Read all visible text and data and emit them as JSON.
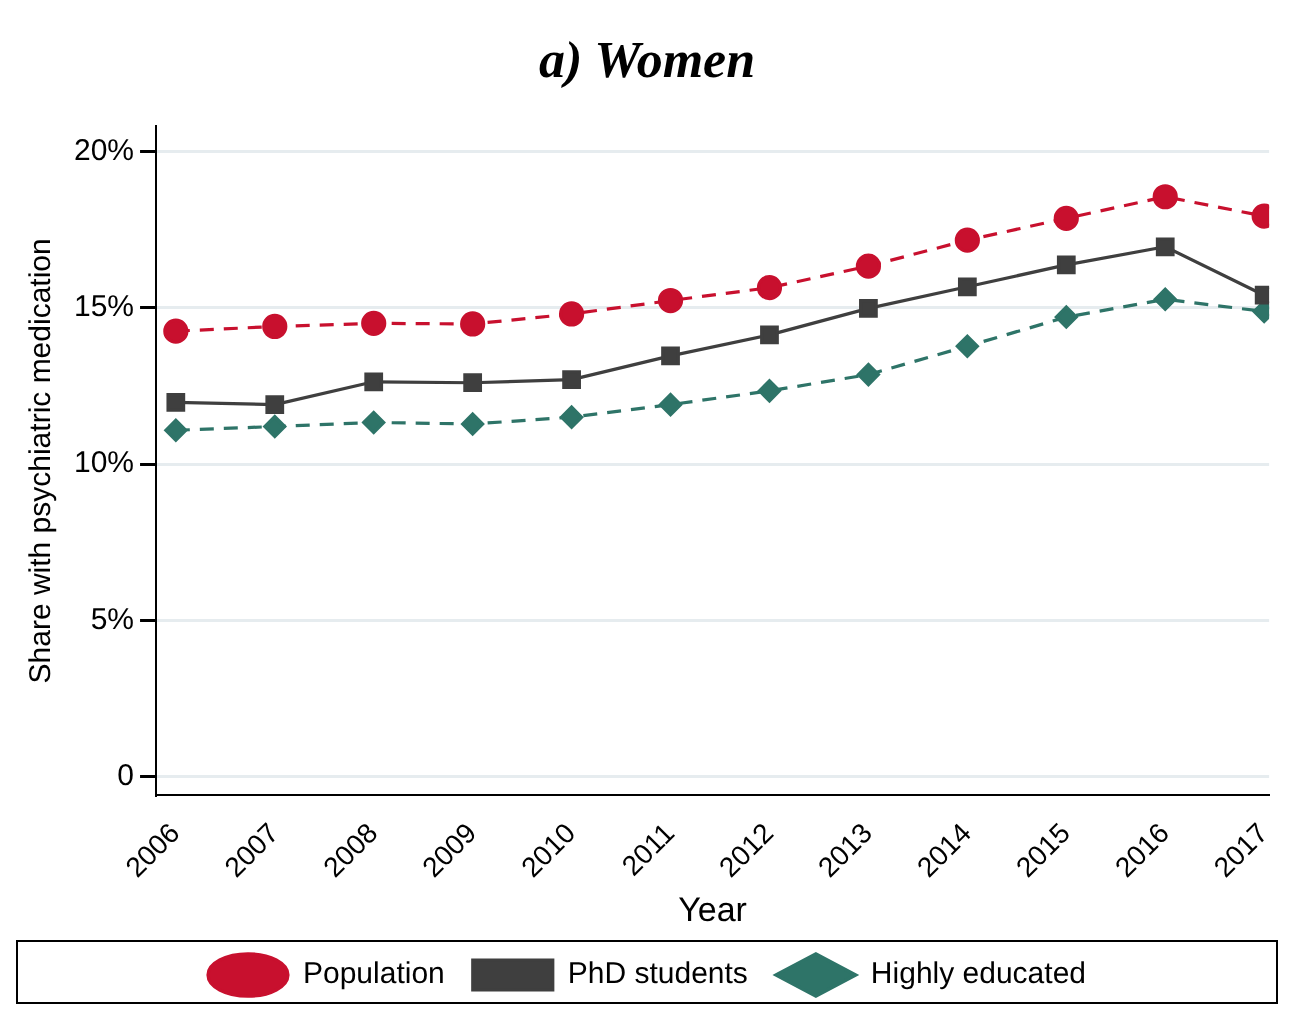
{
  "chart_data": {
    "type": "line",
    "title": "a) Women",
    "xlabel": "Year",
    "ylabel": "Share with psychiatric medication",
    "x": [
      2006,
      2007,
      2008,
      2009,
      2010,
      2011,
      2012,
      2013,
      2014,
      2015,
      2016,
      2017
    ],
    "xlim": [
      2005.8,
      2017.05
    ],
    "xticks": [
      2006,
      2007,
      2008,
      2009,
      2010,
      2011,
      2012,
      2013,
      2014,
      2015,
      2016,
      2017
    ],
    "ylim": [
      -0.6,
      20.8
    ],
    "yticks": [
      0,
      {
        "value": 5,
        "label": "5%"
      },
      {
        "value": 10,
        "label": "10%"
      },
      {
        "value": 15,
        "label": "15%"
      },
      {
        "value": 20,
        "label": "20%"
      }
    ],
    "grid": "y",
    "legend": "bottom",
    "series": [
      {
        "name": "Population",
        "color": "#c8102e",
        "marker": "circle",
        "line_style": "dashed",
        "values": [
          14.25,
          14.4,
          14.5,
          14.48,
          14.8,
          15.23,
          15.64,
          16.33,
          17.16,
          17.86,
          18.55,
          17.93
        ]
      },
      {
        "name": "PhD students",
        "color": "#3f3f3f",
        "marker": "square",
        "line_style": "solid",
        "values": [
          11.97,
          11.9,
          12.63,
          12.6,
          12.7,
          13.46,
          14.13,
          14.98,
          15.67,
          16.37,
          16.95,
          15.4
        ]
      },
      {
        "name": "Highly educated",
        "color": "#2e7468",
        "marker": "diamond",
        "line_style": "dashed",
        "values": [
          11.08,
          11.2,
          11.33,
          11.28,
          11.5,
          11.9,
          12.34,
          12.86,
          13.77,
          14.7,
          15.27,
          14.88
        ]
      }
    ]
  }
}
